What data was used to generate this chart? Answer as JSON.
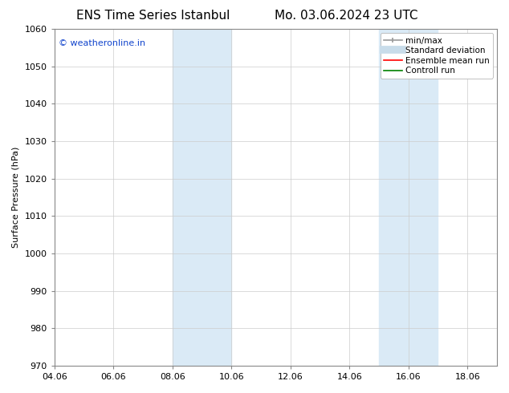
{
  "title": "ENS Time Series Istanbul",
  "title2": "Mo. 03.06.2024 23 UTC",
  "ylabel": "Surface Pressure (hPa)",
  "ylim": [
    970,
    1060
  ],
  "yticks": [
    970,
    980,
    990,
    1000,
    1010,
    1020,
    1030,
    1040,
    1050,
    1060
  ],
  "xlim_start": 4.06,
  "xlim_end": 19.06,
  "xtick_labels": [
    "04.06",
    "06.06",
    "08.06",
    "10.06",
    "12.06",
    "14.06",
    "16.06",
    "18.06"
  ],
  "xtick_positions": [
    4.06,
    6.06,
    8.06,
    10.06,
    12.06,
    14.06,
    16.06,
    18.06
  ],
  "shaded_bands": [
    {
      "x_start": 8.06,
      "x_end": 10.06,
      "color": "#daeaf6"
    },
    {
      "x_start": 15.06,
      "x_end": 17.06,
      "color": "#daeaf6"
    }
  ],
  "watermark": "© weatheronline.in",
  "watermark_color": "#1144cc",
  "legend_entries": [
    {
      "label": "min/max",
      "color": "#999999",
      "lw": 1.2,
      "style": "line_with_caps"
    },
    {
      "label": "Standard deviation",
      "color": "#c8dcea",
      "lw": 7,
      "style": "solid"
    },
    {
      "label": "Ensemble mean run",
      "color": "red",
      "lw": 1.2,
      "style": "solid"
    },
    {
      "label": "Controll run",
      "color": "green",
      "lw": 1.2,
      "style": "solid"
    }
  ],
  "bg_color": "#ffffff",
  "grid_color": "#cccccc",
  "title_fontsize": 11,
  "axis_fontsize": 8,
  "tick_fontsize": 8,
  "watermark_fontsize": 8,
  "legend_fontsize": 7.5
}
